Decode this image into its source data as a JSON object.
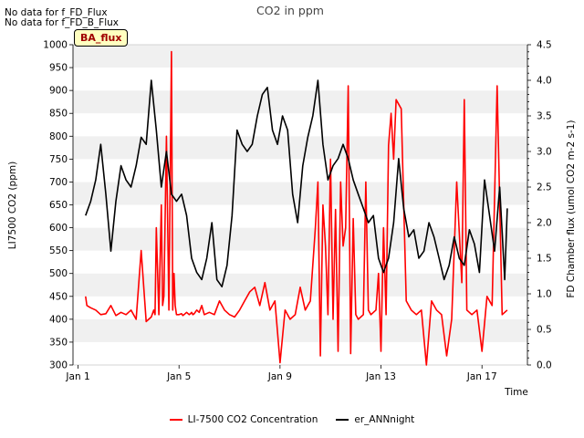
{
  "chart_data": {
    "type": "line",
    "title": "CO2 in ppm",
    "xlabel": "Time",
    "ylabel": "LI7500 CO2 (ppm)",
    "y2label": "FD Chamber flux (umol CO2 m-2 s-1)",
    "xlim": [
      0.8,
      18.8
    ],
    "ylim": [
      300,
      1000
    ],
    "y2lim": [
      0.0,
      4.5
    ],
    "x_ticks": [
      1,
      5,
      9,
      13,
      17
    ],
    "x_tick_labels": [
      "Jan 1",
      "Jan 5",
      "Jan 9",
      "Jan 13",
      "Jan 17"
    ],
    "y_ticks": [
      300,
      350,
      400,
      450,
      500,
      550,
      600,
      650,
      700,
      750,
      800,
      850,
      900,
      950,
      1000
    ],
    "y2_ticks": [
      0.0,
      0.5,
      1.0,
      1.5,
      2.0,
      2.5,
      3.0,
      3.5,
      4.0,
      4.5
    ],
    "y2_tick_labels": [
      "0.0",
      "0.5",
      "1.0",
      "1.5",
      "2.0",
      "2.5",
      "3.0",
      "3.5",
      "4.0",
      "4.5"
    ],
    "grid": "horizontal bands",
    "legend_position": "bottom-center",
    "series": [
      {
        "name": "LI-7500 CO2 Concentration",
        "axis": "left",
        "color": "#ff0000",
        "x": [
          1.3,
          1.35,
          1.5,
          1.7,
          1.9,
          2.1,
          2.3,
          2.5,
          2.7,
          2.9,
          3.1,
          3.3,
          3.5,
          3.7,
          3.8,
          3.9,
          4.0,
          4.05,
          4.1,
          4.2,
          4.3,
          4.35,
          4.4,
          4.5,
          4.6,
          4.7,
          4.75,
          4.8,
          4.85,
          4.9,
          5.0,
          5.1,
          5.15,
          5.2,
          5.3,
          5.4,
          5.45,
          5.5,
          5.55,
          5.6,
          5.7,
          5.8,
          5.9,
          6.0,
          6.2,
          6.4,
          6.6,
          6.8,
          7.0,
          7.2,
          7.4,
          7.6,
          7.8,
          8.0,
          8.2,
          8.4,
          8.6,
          8.8,
          9.0,
          9.2,
          9.4,
          9.6,
          9.8,
          10.0,
          10.2,
          10.4,
          10.5,
          10.6,
          10.7,
          10.8,
          10.9,
          11.0,
          11.1,
          11.2,
          11.3,
          11.4,
          11.5,
          11.6,
          11.7,
          11.8,
          11.9,
          12.0,
          12.1,
          12.2,
          12.3,
          12.4,
          12.5,
          12.6,
          12.7,
          12.8,
          12.9,
          13.0,
          13.1,
          13.2,
          13.3,
          13.4,
          13.5,
          13.6,
          13.8,
          14.0,
          14.2,
          14.4,
          14.6,
          14.8,
          15.0,
          15.2,
          15.4,
          15.6,
          15.8,
          16.0,
          16.2,
          16.3,
          16.4,
          16.6,
          16.8,
          17.0,
          17.2,
          17.4,
          17.6,
          17.8,
          18.0
        ],
        "values": [
          450,
          430,
          425,
          420,
          410,
          412,
          430,
          408,
          415,
          410,
          420,
          400,
          550,
          395,
          400,
          405,
          420,
          410,
          600,
          410,
          650,
          430,
          450,
          800,
          420,
          985,
          420,
          500,
          430,
          410,
          410,
          412,
          408,
          410,
          415,
          410,
          412,
          415,
          410,
          412,
          420,
          415,
          430,
          410,
          415,
          410,
          440,
          420,
          410,
          405,
          420,
          440,
          460,
          470,
          430,
          480,
          420,
          440,
          305,
          420,
          400,
          410,
          470,
          420,
          440,
          600,
          700,
          320,
          650,
          560,
          410,
          750,
          400,
          640,
          330,
          700,
          560,
          600,
          910,
          325,
          620,
          410,
          400,
          405,
          410,
          700,
          420,
          410,
          415,
          420,
          500,
          330,
          600,
          410,
          780,
          850,
          750,
          880,
          860,
          440,
          420,
          410,
          420,
          300,
          440,
          420,
          410,
          320,
          400,
          700,
          480,
          880,
          420,
          410,
          420,
          330,
          450,
          430,
          910,
          410,
          420
        ]
      },
      {
        "name": "er_ANNnight",
        "axis": "right",
        "color": "#000000",
        "x": [
          1.3,
          1.5,
          1.7,
          1.9,
          2.1,
          2.3,
          2.5,
          2.7,
          2.9,
          3.1,
          3.3,
          3.5,
          3.7,
          3.9,
          4.1,
          4.3,
          4.5,
          4.7,
          4.9,
          5.1,
          5.3,
          5.5,
          5.7,
          5.9,
          6.1,
          6.3,
          6.5,
          6.7,
          6.9,
          7.1,
          7.3,
          7.5,
          7.7,
          7.9,
          8.1,
          8.3,
          8.5,
          8.7,
          8.9,
          9.1,
          9.3,
          9.5,
          9.7,
          9.9,
          10.1,
          10.3,
          10.5,
          10.7,
          10.9,
          11.1,
          11.3,
          11.5,
          11.7,
          11.9,
          12.1,
          12.3,
          12.5,
          12.7,
          12.9,
          13.1,
          13.3,
          13.5,
          13.7,
          13.9,
          14.1,
          14.3,
          14.5,
          14.7,
          14.9,
          15.1,
          15.3,
          15.5,
          15.7,
          15.9,
          16.1,
          16.3,
          16.5,
          16.7,
          16.9,
          17.1,
          17.3,
          17.5,
          17.7,
          17.9,
          18.0
        ],
        "values": [
          2.1,
          2.3,
          2.6,
          3.1,
          2.4,
          1.6,
          2.3,
          2.8,
          2.6,
          2.5,
          2.8,
          3.2,
          3.1,
          4.0,
          3.3,
          2.5,
          3.0,
          2.4,
          2.3,
          2.4,
          2.1,
          1.5,
          1.3,
          1.2,
          1.5,
          2.0,
          1.2,
          1.1,
          1.4,
          2.1,
          3.3,
          3.1,
          3.0,
          3.1,
          3.5,
          3.8,
          3.9,
          3.3,
          3.1,
          3.5,
          3.3,
          2.4,
          2.0,
          2.8,
          3.2,
          3.5,
          4.0,
          3.1,
          2.6,
          2.8,
          2.9,
          3.1,
          2.9,
          2.6,
          2.4,
          2.2,
          2.0,
          2.1,
          1.5,
          1.3,
          1.5,
          2.0,
          2.9,
          2.2,
          1.8,
          1.9,
          1.5,
          1.6,
          2.0,
          1.8,
          1.5,
          1.2,
          1.4,
          1.8,
          1.5,
          1.4,
          1.9,
          1.7,
          1.3,
          2.6,
          2.1,
          1.6,
          2.5,
          1.2,
          2.2
        ]
      }
    ]
  },
  "annotations": {
    "no_data_lines": [
      "No data for f_FD_Flux",
      "No data for f_FD_B_Flux"
    ],
    "badge": "BA_flux"
  }
}
